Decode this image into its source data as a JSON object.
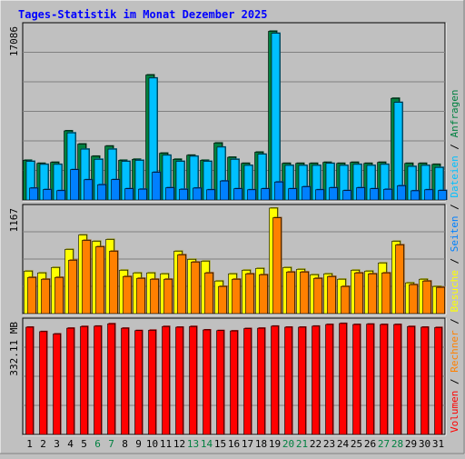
{
  "title": "Tages-Statistik im Monat Dezember 2025",
  "colors": {
    "background": "#c0c0c0",
    "title": "#0000ff",
    "anfragen": "#008040",
    "dateien": "#00c0ff",
    "seiten": "#0080ff",
    "besuche": "#ffff00",
    "rechner": "#ff8000",
    "volumen": "#ff0000",
    "sep": "#000000",
    "weekend": "#008040",
    "weekday": "#000000",
    "grid": "#808080"
  },
  "chart_data": [
    {
      "type": "bar",
      "name": "anfragen-dateien-seiten",
      "max_label": "17086",
      "ylim": [
        0,
        17086
      ],
      "x": [
        1,
        2,
        3,
        4,
        5,
        6,
        7,
        8,
        9,
        10,
        11,
        12,
        13,
        14,
        15,
        16,
        17,
        18,
        19,
        20,
        21,
        22,
        23,
        24,
        25,
        26,
        27,
        28,
        29,
        30,
        31
      ],
      "series": [
        {
          "name": "Anfragen",
          "values": [
            3900,
            3600,
            3700,
            6800,
            5500,
            4300,
            5300,
            3900,
            4000,
            12300,
            4600,
            4000,
            4400,
            3900,
            5600,
            4200,
            3600,
            4700,
            16600,
            3600,
            3600,
            3600,
            3700,
            3600,
            3700,
            3600,
            3700,
            10000,
            3600,
            3600,
            3500
          ]
        },
        {
          "name": "Dateien",
          "values": [
            3800,
            3500,
            3500,
            6600,
            5000,
            4000,
            5000,
            3800,
            3900,
            12000,
            4400,
            3800,
            4300,
            3800,
            5200,
            4000,
            3400,
            4500,
            16400,
            3400,
            3400,
            3400,
            3600,
            3400,
            3500,
            3400,
            3500,
            9600,
            3300,
            3400,
            3200
          ]
        },
        {
          "name": "Seiten",
          "values": [
            1167,
            1024,
            913,
            2980,
            1987,
            1500,
            2000,
            1100,
            1060,
            2720,
            1200,
            1050,
            1167,
            1000,
            1867,
            1100,
            1000,
            1100,
            1767,
            1100,
            1300,
            1000,
            1200,
            920,
            1200,
            1100,
            1050,
            1400,
            900,
            1000,
            930
          ]
        }
      ]
    },
    {
      "type": "bar",
      "name": "besuche-rechner",
      "max_label": "1167",
      "ylim": [
        0,
        1167
      ],
      "x": [
        1,
        2,
        3,
        4,
        5,
        6,
        7,
        8,
        9,
        10,
        11,
        12,
        13,
        14,
        15,
        16,
        17,
        18,
        19,
        20,
        21,
        22,
        23,
        24,
        25,
        26,
        27,
        28,
        29,
        30,
        31
      ],
      "series": [
        {
          "name": "Besuche",
          "values": [
            470,
            450,
            510,
            710,
            870,
            800,
            820,
            480,
            450,
            450,
            440,
            690,
            600,
            580,
            360,
            440,
            480,
            500,
            1167,
            510,
            490,
            430,
            440,
            380,
            480,
            470,
            560,
            800,
            340,
            380,
            300
          ]
        },
        {
          "name": "Rechner",
          "values": [
            400,
            380,
            400,
            590,
            810,
            740,
            690,
            410,
            390,
            380,
            380,
            650,
            570,
            450,
            300,
            380,
            440,
            430,
            1060,
            460,
            460,
            390,
            410,
            300,
            450,
            440,
            450,
            760,
            320,
            360,
            290
          ]
        }
      ]
    },
    {
      "type": "bar",
      "name": "volumen",
      "max_label": "332.11 MB",
      "ylim": [
        0,
        332.11
      ],
      "x": [
        1,
        2,
        3,
        4,
        5,
        6,
        7,
        8,
        9,
        10,
        11,
        12,
        13,
        14,
        15,
        16,
        17,
        18,
        19,
        20,
        21,
        22,
        23,
        24,
        25,
        26,
        27,
        28,
        29,
        30,
        31
      ],
      "series": [
        {
          "name": "Volumen",
          "values": [
            316,
            303,
            296,
            313,
            318,
            319,
            326,
            313,
            306,
            307,
            318,
            316,
            318,
            308,
            306,
            305,
            312,
            313,
            319,
            316,
            316,
            319,
            324,
            327,
            324,
            325,
            324,
            324,
            318,
            316,
            315
          ]
        }
      ]
    }
  ],
  "legend": {
    "volumen": "Volumen",
    "rechner": "Rechner",
    "besuche": "Besuche",
    "seiten": "Seiten",
    "dateien": "Dateien",
    "anfragen": "Anfragen",
    "sep": "/"
  },
  "weekend_days": [
    6,
    7,
    13,
    14,
    20,
    21,
    27,
    28
  ]
}
